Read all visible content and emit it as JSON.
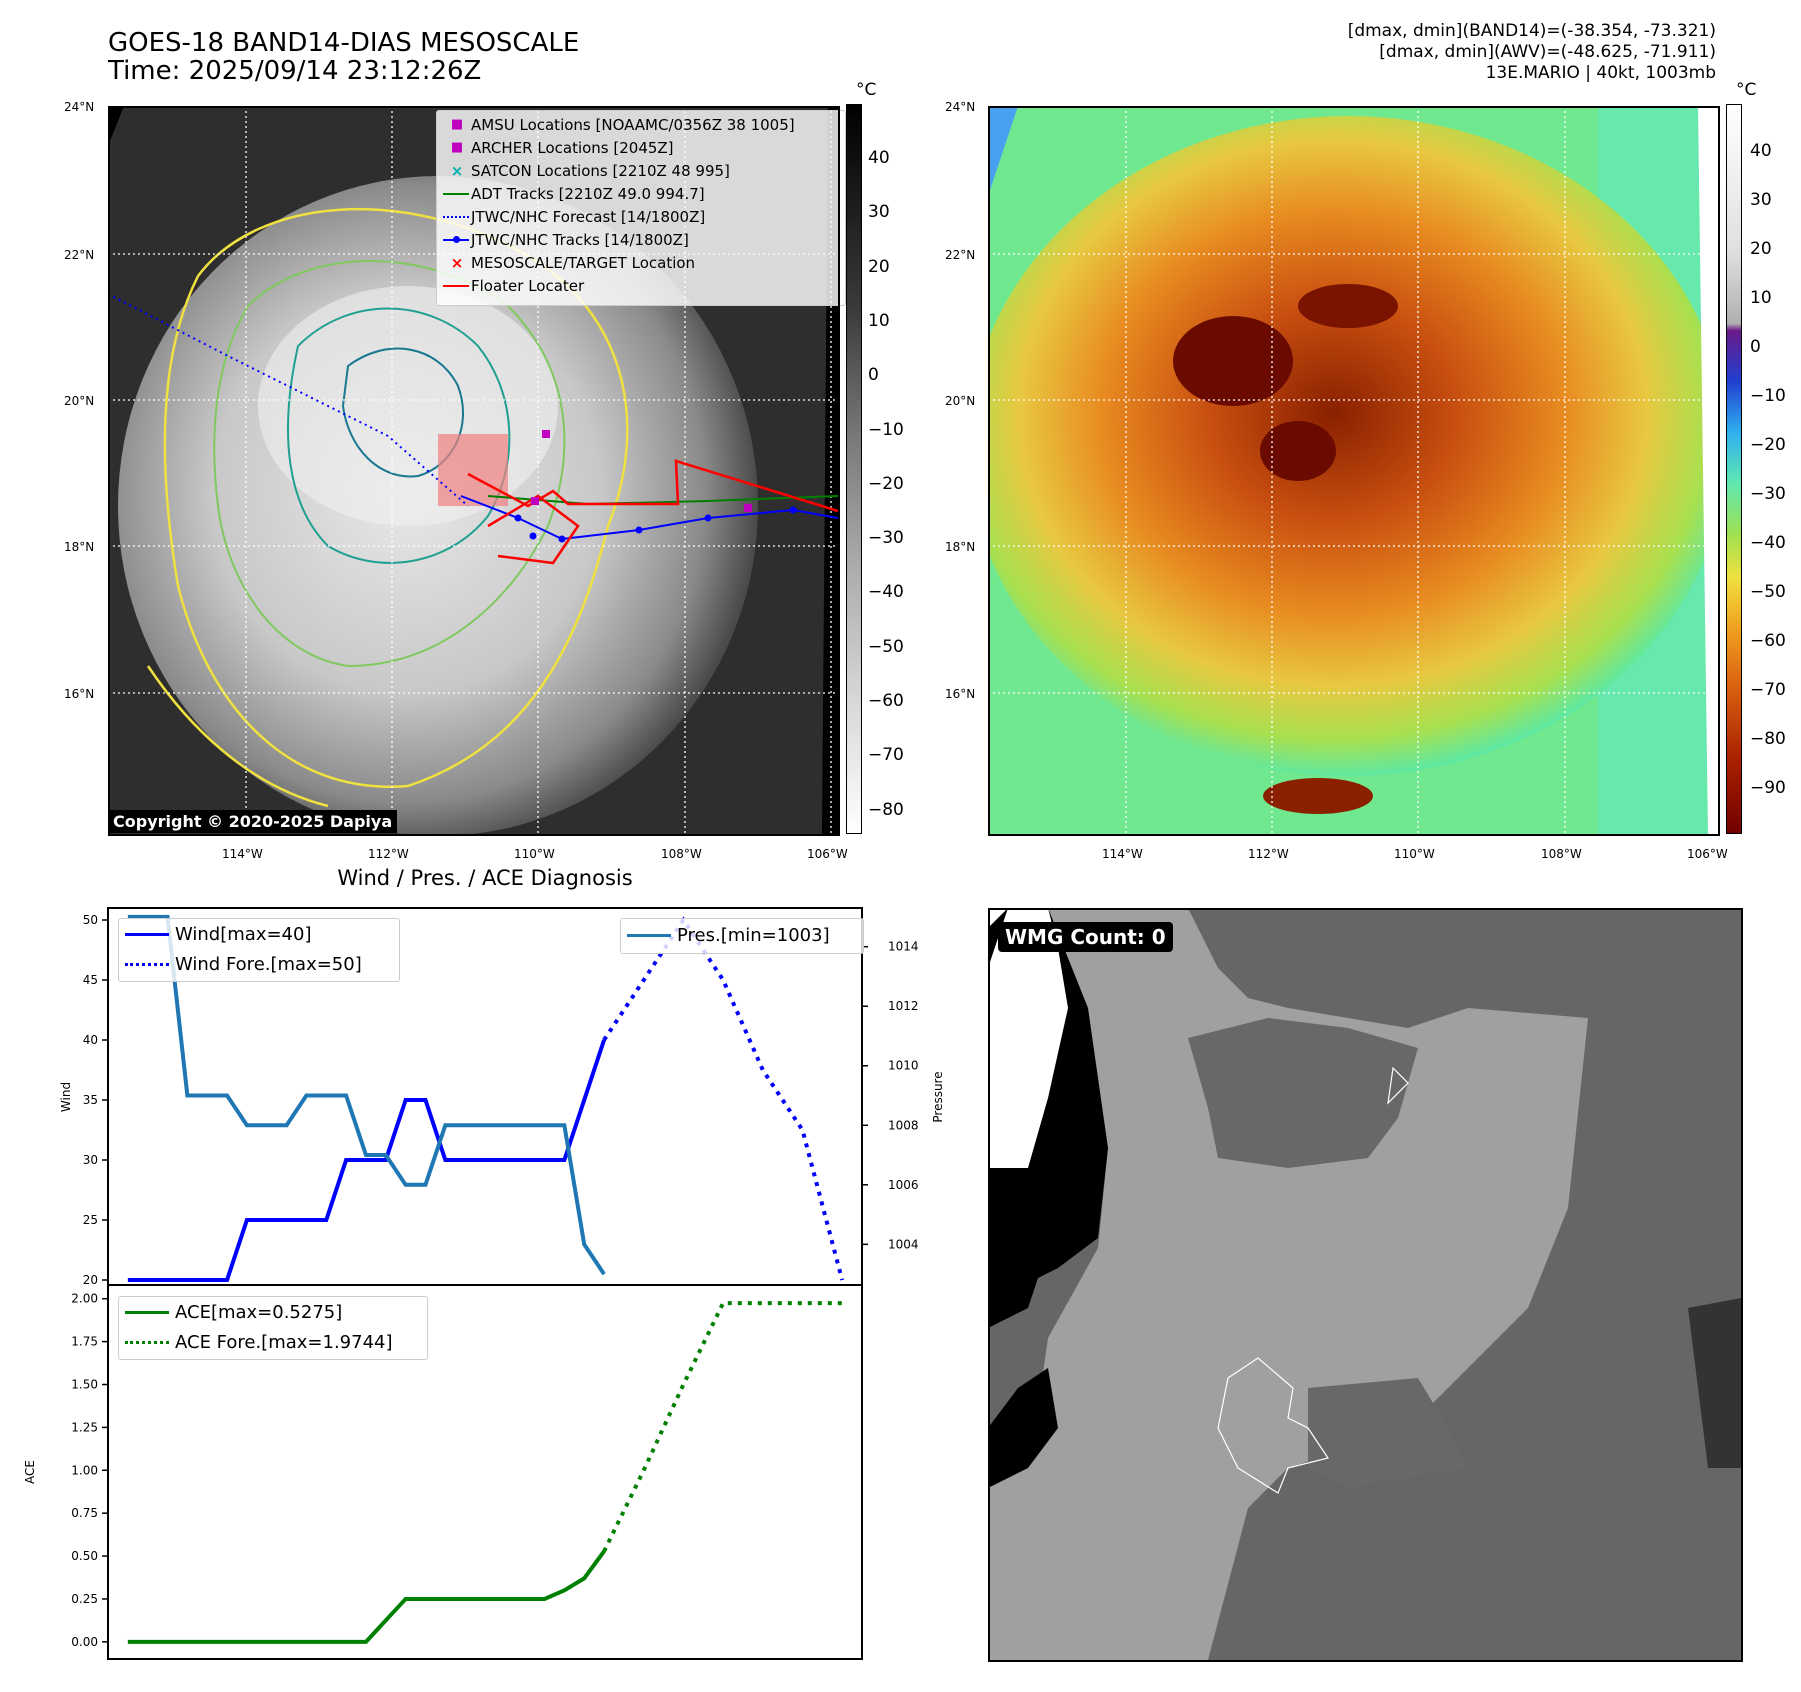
{
  "header": {
    "title_line1": "GOES-18 BAND14-DIAS MESOSCALE",
    "title_line2": "Time: 2025/09/14 23:12:26Z",
    "right_line1": "[dmax, dmin](BAND14)=(-38.354, -73.321)",
    "right_line2": "[dmax, dmin](AWV)=(-48.625, -71.911)",
    "right_line3": "13E.MARIO | 40kt, 1003mb"
  },
  "maps": {
    "lat_labels": [
      "24°N",
      "22°N",
      "20°N",
      "18°N",
      "16°N"
    ],
    "lon_labels": [
      "114°W",
      "112°W",
      "110°W",
      "108°W",
      "106°W"
    ],
    "copyright": "Copyright © 2020-2025 Dapiya",
    "legend": [
      {
        "label": "AMSU Locations [NOAAMC/0356Z 38 1005]",
        "marker": "square",
        "color": "#c000c0"
      },
      {
        "label": "ARCHER Locations [2045Z]",
        "marker": "square",
        "color": "#c000c0"
      },
      {
        "label": "SATCON Locations [2210Z 48 995]",
        "marker": "x",
        "color": "#00b0b0"
      },
      {
        "label": "ADT Tracks [2210Z 49.0 994.7]",
        "marker": "line",
        "color": "#008000"
      },
      {
        "label": "JTWC/NHC Forecast [14/1800Z]",
        "marker": "dotted",
        "color": "#0000ff"
      },
      {
        "label": "JTWC/NHC Tracks [14/1800Z]",
        "marker": "line-dot",
        "color": "#0000ff"
      },
      {
        "label": "MESOSCALE/TARGET Location",
        "marker": "x",
        "color": "#ff0000"
      },
      {
        "label": "Floater Locater",
        "marker": "line",
        "color": "#ff0000"
      }
    ],
    "gray_colorbar": {
      "unit": "°C",
      "ticks": [
        "40",
        "30",
        "20",
        "10",
        "0",
        "−10",
        "−20",
        "−30",
        "−40",
        "−50",
        "−60",
        "−70",
        "−80"
      ]
    },
    "color_colorbar": {
      "unit": "°C",
      "ticks": [
        "40",
        "30",
        "20",
        "10",
        "0",
        "−10",
        "−20",
        "−30",
        "−40",
        "−50",
        "−60",
        "−70",
        "−80",
        "−90"
      ]
    }
  },
  "wmg": {
    "count_label": "WMG Count: 0"
  },
  "chart_data": [
    {
      "type": "line",
      "title": "Wind / Pres. / ACE Diagnosis",
      "ylabel": "Wind",
      "y2label": "Pressure",
      "ylim": [
        19.5,
        51
      ],
      "y2lim": [
        1002.6,
        1015.3
      ],
      "xlim": [
        0,
        38
      ],
      "legend_left": [
        "Wind[max=40]",
        "Wind Fore.[max=50]"
      ],
      "legend_right": [
        "Pres.[min=1003]"
      ],
      "series": [
        {
          "name": "Wind[max=40]",
          "axis": "left",
          "style": "solid",
          "color": "#0000ff",
          "x": [
            1,
            2,
            3,
            4,
            5,
            6,
            7,
            8,
            9,
            10,
            11,
            12,
            13,
            14,
            15,
            16,
            17,
            18,
            19,
            20,
            21,
            22,
            23,
            24,
            25
          ],
          "y": [
            20,
            20,
            20,
            20,
            20,
            20,
            25,
            25,
            25,
            25,
            25,
            30,
            30,
            30,
            35,
            35,
            30,
            30,
            30,
            30,
            30,
            30,
            30,
            35,
            40
          ]
        },
        {
          "name": "Wind Fore.[max=50]",
          "axis": "left",
          "style": "dotted",
          "color": "#0000ff",
          "x": [
            25,
            27,
            29,
            31,
            33,
            35,
            37
          ],
          "y": [
            40,
            45,
            50,
            45,
            37.5,
            32.5,
            20
          ]
        },
        {
          "name": "Pres.[min=1003]",
          "axis": "right",
          "style": "solid",
          "color": "#1f77b4",
          "x": [
            1,
            2,
            3,
            4,
            5,
            6,
            7,
            8,
            9,
            10,
            11,
            12,
            13,
            14,
            15,
            16,
            17,
            18,
            19,
            20,
            21,
            22,
            23,
            24,
            25
          ],
          "y": [
            1015,
            1015,
            1015,
            1009,
            1009,
            1009,
            1008,
            1008,
            1008,
            1009,
            1009,
            1009,
            1007,
            1007,
            1006,
            1006,
            1008,
            1008,
            1008,
            1008,
            1008,
            1008,
            1008,
            1004,
            1003
          ]
        }
      ],
      "yticks_left": [
        "20",
        "25",
        "30",
        "35",
        "40",
        "45",
        "50"
      ],
      "yticks_right": [
        "1004",
        "1006",
        "1008",
        "1010",
        "1012",
        "1014"
      ]
    },
    {
      "type": "line",
      "ylabel": "ACE",
      "ylim": [
        -0.1,
        2.08
      ],
      "xlim": [
        0,
        38
      ],
      "legend": [
        "ACE[max=0.5275]",
        "ACE Fore.[max=1.9744]"
      ],
      "series": [
        {
          "name": "ACE[max=0.5275]",
          "style": "solid",
          "color": "#008000",
          "x": [
            1,
            8,
            13,
            15,
            16,
            17,
            18,
            19,
            20,
            21,
            22,
            23,
            24,
            25
          ],
          "y": [
            0,
            0,
            0,
            0.25,
            0.25,
            0.25,
            0.25,
            0.25,
            0.25,
            0.25,
            0.25,
            0.3,
            0.37,
            0.5275
          ]
        },
        {
          "name": "ACE Fore.[max=1.9744]",
          "style": "dotted",
          "color": "#008000",
          "x": [
            25,
            27,
            29,
            31,
            33,
            35,
            37
          ],
          "y": [
            0.5275,
            1.0,
            1.5,
            1.9744,
            1.9744,
            1.9744,
            1.9744
          ]
        }
      ],
      "yticks": [
        "0.00",
        "0.25",
        "0.50",
        "0.75",
        "1.00",
        "1.25",
        "1.50",
        "1.75",
        "2.00"
      ]
    }
  ]
}
